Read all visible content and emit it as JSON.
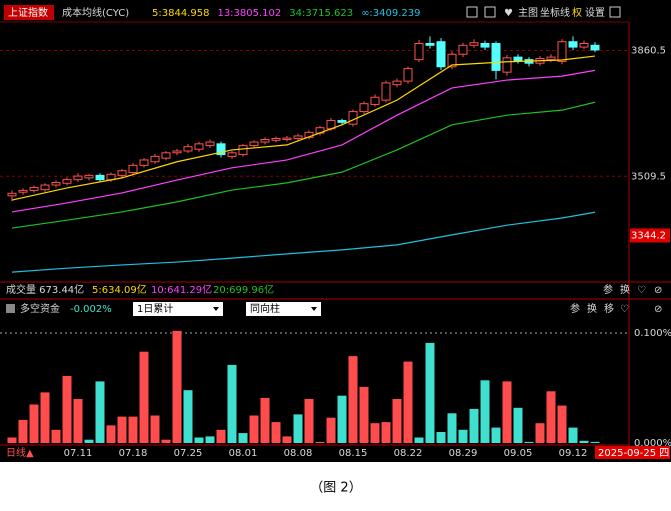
{
  "header": {
    "index_name": "上证指数",
    "indicator_name": "成本均线(CYC)",
    "toolbar": [
      "主图",
      "坐标线",
      "权",
      "设置"
    ]
  },
  "volume_header": {
    "title": "成交量 673.44亿",
    "ma": [
      {
        "text": "5:634.09亿",
        "color": "#ffd700"
      },
      {
        "text": "10:641.29亿",
        "color": "#ff40ff"
      },
      {
        "text": "20:699.96亿",
        "color": "#20c020"
      }
    ],
    "toolbar": [
      "参",
      "换"
    ]
  },
  "indicator_header": {
    "title": "多空资金",
    "value": "-0.002%",
    "dropdowns": [
      "1日累计",
      "同向柱"
    ],
    "toolbar": [
      "参",
      "换",
      "移"
    ]
  },
  "period": "日线▲",
  "caption": "（图 2）",
  "chart_data": [
    {
      "type": "candlestick",
      "up_color": "#ff5050",
      "down_color": "#54ffff",
      "ylim": [
        3220,
        3940
      ],
      "yticks": [
        3509.5,
        3860.5
      ],
      "grid": true,
      "marker_value": 3344.2,
      "open": [
        3455,
        3465,
        3470,
        3472,
        3485,
        3490,
        3500,
        3505,
        3512,
        3500,
        3512,
        3520,
        3540,
        3550,
        3560,
        3575,
        3580,
        3585,
        3595,
        3600,
        3565,
        3570,
        3595,
        3605,
        3610,
        3612,
        3615,
        3618,
        3630,
        3642,
        3665,
        3655,
        3690,
        3710,
        3722,
        3765,
        3775,
        3835,
        3880,
        3885,
        3815,
        3850,
        3875,
        3880,
        3880,
        3800,
        3842,
        3835,
        3825,
        3835,
        3830,
        3885,
        3870,
        3875
      ],
      "high": [
        3470,
        3476,
        3484,
        3490,
        3498,
        3506,
        3518,
        3516,
        3518,
        3520,
        3530,
        3546,
        3560,
        3572,
        3580,
        3586,
        3600,
        3606,
        3612,
        3606,
        3580,
        3600,
        3610,
        3618,
        3620,
        3622,
        3628,
        3638,
        3650,
        3672,
        3670,
        3696,
        3718,
        3738,
        3776,
        3782,
        3816,
        3890,
        3900,
        3895,
        3858,
        3882,
        3892,
        3888,
        3886,
        3848,
        3850,
        3842,
        3845,
        3850,
        3892,
        3900,
        3888,
        3884
      ],
      "low": [
        3440,
        3458,
        3464,
        3466,
        3478,
        3484,
        3494,
        3498,
        3494,
        3494,
        3506,
        3514,
        3534,
        3544,
        3554,
        3568,
        3574,
        3578,
        3588,
        3562,
        3558,
        3564,
        3588,
        3598,
        3604,
        3606,
        3608,
        3612,
        3624,
        3636,
        3652,
        3648,
        3684,
        3704,
        3716,
        3758,
        3768,
        3828,
        3866,
        3806,
        3808,
        3842,
        3868,
        3862,
        3780,
        3790,
        3824,
        3816,
        3818,
        3828,
        3822,
        3862,
        3864,
        3856
      ],
      "close": [
        3462,
        3470,
        3478,
        3485,
        3492,
        3500,
        3510,
        3512,
        3500,
        3515,
        3525,
        3540,
        3555,
        3565,
        3575,
        3580,
        3592,
        3600,
        3605,
        3570,
        3575,
        3595,
        3605,
        3612,
        3615,
        3616,
        3622,
        3632,
        3645,
        3665,
        3660,
        3690,
        3712,
        3730,
        3770,
        3775,
        3810,
        3880,
        3875,
        3815,
        3850,
        3875,
        3882,
        3870,
        3805,
        3840,
        3832,
        3825,
        3838,
        3842,
        3885,
        3870,
        3880,
        3862
      ],
      "series": [
        {
          "name": "5:3844.958",
          "color": "#ffd700",
          "x": [
            0,
            5,
            10,
            15,
            20,
            25,
            30,
            35,
            40,
            45,
            50,
            53
          ],
          "values": [
            3443,
            3477,
            3505,
            3550,
            3583,
            3597,
            3653,
            3722,
            3820,
            3829,
            3834,
            3845
          ]
        },
        {
          "name": "13:3805.102",
          "color": "#ff40ff",
          "x": [
            0,
            5,
            10,
            15,
            20,
            25,
            30,
            35,
            40,
            45,
            50,
            53
          ],
          "values": [
            3410,
            3435,
            3463,
            3499,
            3533,
            3555,
            3597,
            3680,
            3756,
            3778,
            3789,
            3805
          ]
        },
        {
          "name": "34:3715.623",
          "color": "#20c020",
          "x": [
            0,
            5,
            10,
            15,
            20,
            25,
            30,
            35,
            40,
            45,
            50,
            53
          ],
          "values": [
            3365,
            3387,
            3410,
            3438,
            3471,
            3491,
            3521,
            3583,
            3653,
            3680,
            3694,
            3716
          ]
        },
        {
          "name": "∞:3409.239",
          "color": "#20c0e0",
          "x": [
            0,
            5,
            10,
            15,
            20,
            25,
            30,
            35,
            40,
            45,
            50,
            53
          ],
          "values": [
            3242,
            3253,
            3262,
            3270,
            3281,
            3293,
            3304,
            3318,
            3346,
            3373,
            3393,
            3409
          ]
        }
      ]
    },
    {
      "type": "bar",
      "ylim": [
        0,
        0.11
      ],
      "yticks": [
        {
          "value": 0,
          "label": "0.000%"
        },
        {
          "value": 0.1,
          "label": "0.100%"
        }
      ],
      "categories": [
        null,
        null,
        null,
        null,
        null,
        null,
        "07.11",
        null,
        null,
        null,
        null,
        "07.18",
        null,
        null,
        null,
        null,
        "07.25",
        null,
        null,
        null,
        null,
        "08.01",
        null,
        null,
        null,
        null,
        "08.08",
        null,
        null,
        null,
        null,
        "08.15",
        null,
        null,
        null,
        null,
        "08.22",
        null,
        null,
        null,
        null,
        "08.29",
        null,
        null,
        null,
        null,
        "09.05",
        null,
        null,
        null,
        null,
        "09.12",
        null,
        "2025-09-25 四"
      ],
      "values": [
        0.005,
        0.021,
        0.035,
        0.046,
        0.012,
        0.061,
        0.04,
        0.003,
        0.056,
        0.016,
        0.024,
        0.024,
        0.083,
        0.025,
        0.003,
        0.102,
        0.048,
        0.005,
        0.006,
        0.012,
        0.071,
        0.009,
        0.025,
        0.041,
        0.019,
        0.006,
        0.026,
        0.04,
        0.001,
        0.023,
        0.043,
        0.079,
        0.051,
        0.018,
        0.019,
        0.04,
        0.074,
        0.005,
        0.091,
        0.01,
        0.027,
        0.012,
        0.031,
        0.057,
        0.014,
        0.056,
        0.032,
        0.001,
        0.018,
        0.047,
        0.034,
        0.014,
        0.002,
        0.001
      ],
      "colors": [
        "#ff4d4d",
        "#ff4d4d",
        "#ff4d4d",
        "#ff4d4d",
        "#ff4d4d",
        "#ff4d4d",
        "#ff4d4d",
        "#40e0d0",
        "#40e0d0",
        "#ff4d4d",
        "#ff4d4d",
        "#ff4d4d",
        "#ff4d4d",
        "#ff4d4d",
        "#ff4d4d",
        "#ff4d4d",
        "#40e0d0",
        "#40e0d0",
        "#40e0d0",
        "#ff4d4d",
        "#40e0d0",
        "#40e0d0",
        "#ff4d4d",
        "#ff4d4d",
        "#ff4d4d",
        "#ff4d4d",
        "#40e0d0",
        "#ff4d4d",
        "#ff4d4d",
        "#ff4d4d",
        "#40e0d0",
        "#ff4d4d",
        "#ff4d4d",
        "#ff4d4d",
        "#ff4d4d",
        "#ff4d4d",
        "#ff4d4d",
        "#40e0d0",
        "#40e0d0",
        "#40e0d0",
        "#40e0d0",
        "#40e0d0",
        "#40e0d0",
        "#40e0d0",
        "#40e0d0",
        "#ff4d4d",
        "#40e0d0",
        "#40e0d0",
        "#ff4d4d",
        "#ff4d4d",
        "#ff4d4d",
        "#40e0d0",
        "#40e0d0",
        "#40e0d0"
      ]
    }
  ]
}
